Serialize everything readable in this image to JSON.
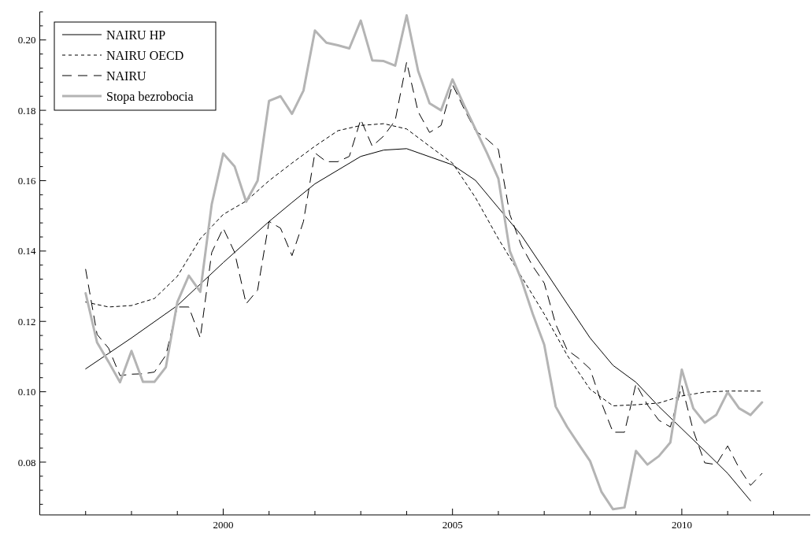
{
  "chart_data": {
    "type": "line",
    "xlim": [
      1996,
      2012.8
    ],
    "ylim": [
      0.065,
      0.208
    ],
    "xticks": [
      {
        "value": 1997,
        "label": null
      },
      {
        "value": 1998,
        "label": null
      },
      {
        "value": 1999,
        "label": null
      },
      2000,
      {
        "value": 2001,
        "label": null
      },
      {
        "value": 2002,
        "label": null
      },
      {
        "value": 2003,
        "label": null
      },
      {
        "value": 2004,
        "label": null
      },
      2005,
      {
        "value": 2006,
        "label": null
      },
      {
        "value": 2007,
        "label": null
      },
      {
        "value": 2008,
        "label": null
      },
      {
        "value": 2009,
        "label": null
      },
      2010,
      {
        "value": 2011,
        "label": null
      },
      {
        "value": 2012,
        "label": null
      }
    ],
    "yticks": [
      {
        "value": 0.068,
        "label": null
      },
      {
        "value": 0.072,
        "label": null
      },
      {
        "value": 0.076,
        "label": null
      },
      {
        "value": 0.08,
        "label": "0.08"
      },
      {
        "value": 0.084,
        "label": null
      },
      {
        "value": 0.088,
        "label": null
      },
      {
        "value": 0.092,
        "label": null
      },
      {
        "value": 0.096,
        "label": null
      },
      {
        "value": 0.1,
        "label": "0.10"
      },
      {
        "value": 0.104,
        "label": null
      },
      {
        "value": 0.108,
        "label": null
      },
      {
        "value": 0.112,
        "label": null
      },
      {
        "value": 0.116,
        "label": null
      },
      {
        "value": 0.12,
        "label": "0.12"
      },
      {
        "value": 0.124,
        "label": null
      },
      {
        "value": 0.128,
        "label": null
      },
      {
        "value": 0.132,
        "label": null
      },
      {
        "value": 0.136,
        "label": null
      },
      {
        "value": 0.14,
        "label": "0.14"
      },
      {
        "value": 0.144,
        "label": null
      },
      {
        "value": 0.148,
        "label": null
      },
      {
        "value": 0.152,
        "label": null
      },
      {
        "value": 0.156,
        "label": null
      },
      {
        "value": 0.16,
        "label": "0.16"
      },
      {
        "value": 0.164,
        "label": null
      },
      {
        "value": 0.168,
        "label": null
      },
      {
        "value": 0.172,
        "label": null
      },
      {
        "value": 0.176,
        "label": null
      },
      {
        "value": 0.18,
        "label": "0.18"
      },
      {
        "value": 0.184,
        "label": null
      },
      {
        "value": 0.188,
        "label": null
      },
      {
        "value": 0.192,
        "label": null
      },
      {
        "value": 0.196,
        "label": null
      },
      {
        "value": 0.2,
        "label": "0.20"
      },
      {
        "value": 0.204,
        "label": null
      },
      {
        "value": 0.208,
        "label": null
      }
    ],
    "grid": false,
    "legend": "top left",
    "series": [
      {
        "name": "NAIRU HP",
        "color": "#000000",
        "line_style": "solid",
        "x": [
          1997,
          1997.5,
          1998,
          1999,
          2000,
          2001,
          2001.5,
          2002,
          2003,
          2003.5,
          2004,
          2005,
          2005.5,
          2006,
          2006.5,
          2007,
          2007.5,
          2008,
          2008.5,
          2009,
          2009.5,
          2010,
          2010.5,
          2011,
          2011.5
        ],
        "values": [
          0.1065,
          0.1109,
          0.1153,
          0.1245,
          0.1367,
          0.1484,
          0.1538,
          0.1591,
          0.1669,
          0.1687,
          0.1691,
          0.1645,
          0.1601,
          0.1523,
          0.1445,
          0.1348,
          0.125,
          0.1153,
          0.1075,
          0.1027,
          0.0958,
          0.0895,
          0.0832,
          0.0768,
          0.069
        ]
      },
      {
        "name": "NAIRU OECD",
        "color": "#000000",
        "line_style": "dotted",
        "x": [
          1997,
          1997.5,
          1998,
          1998.5,
          1999,
          1999.5,
          2000,
          2000.5,
          2001,
          2001.5,
          2002,
          2002.5,
          2003,
          2003.5,
          2004,
          2004.5,
          2005,
          2005.5,
          2006,
          2006.5,
          2007,
          2007.5,
          2008,
          2008.5,
          2009,
          2009.5,
          2010,
          2010.5,
          2011,
          2011.75
        ],
        "values": [
          0.1255,
          0.1241,
          0.1245,
          0.1265,
          0.1328,
          0.1435,
          0.1504,
          0.1542,
          0.16,
          0.165,
          0.1698,
          0.1742,
          0.1757,
          0.1762,
          0.1747,
          0.1698,
          0.165,
          0.1552,
          0.1435,
          0.1328,
          0.1221,
          0.1104,
          0.1007,
          0.096,
          0.0963,
          0.0968,
          0.0988,
          0.0999,
          0.1002,
          0.1002
        ]
      },
      {
        "name": "NAIRU",
        "color": "#000000",
        "line_style": "dashed",
        "x": [
          1997,
          1997.25,
          1997.5,
          1997.75,
          1998,
          1998.25,
          1998.5,
          1998.75,
          1999,
          1999.25,
          1999.5,
          1999.75,
          2000,
          2000.25,
          2000.5,
          2000.75,
          2001,
          2001.25,
          2001.5,
          2001.75,
          2002,
          2002.25,
          2002.5,
          2002.75,
          2003,
          2003.25,
          2003.5,
          2003.75,
          2004,
          2004.25,
          2004.5,
          2004.75,
          2005,
          2005.25,
          2005.5,
          2005.75,
          2006,
          2006.25,
          2006.5,
          2006.75,
          2007,
          2007.25,
          2007.5,
          2007.75,
          2008,
          2008.25,
          2008.5,
          2008.75,
          2009,
          2009.25,
          2009.5,
          2009.75,
          2010,
          2010.25,
          2010.5,
          2010.75,
          2011,
          2011.25,
          2011.5,
          2011.75
        ],
        "values": [
          0.1348,
          0.1163,
          0.1124,
          0.1046,
          0.105,
          0.1051,
          0.1056,
          0.1104,
          0.1241,
          0.1241,
          0.1153,
          0.1396,
          0.1465,
          0.1396,
          0.125,
          0.1289,
          0.1484,
          0.1465,
          0.1387,
          0.1484,
          0.1679,
          0.1654,
          0.1654,
          0.1669,
          0.1774,
          0.1698,
          0.1727,
          0.1771,
          0.1937,
          0.1796,
          0.1737,
          0.1757,
          0.1873,
          0.1805,
          0.1742,
          0.1718,
          0.1689,
          0.1504,
          0.1416,
          0.1357,
          0.1309,
          0.1192,
          0.1119,
          0.1095,
          0.1065,
          0.0968,
          0.0885,
          0.0885,
          0.1022,
          0.0963,
          0.0919,
          0.09,
          0.1017,
          0.089,
          0.0798,
          0.0793,
          0.0846,
          0.0783,
          0.0734,
          0.0768
        ]
      },
      {
        "name": "Stopa bezrobocia",
        "color": "#b4b4b4",
        "line_style": "solid",
        "x": [
          1997,
          1997.25,
          1997.5,
          1997.75,
          1998,
          1998.25,
          1998.5,
          1998.75,
          1999,
          1999.25,
          1999.5,
          1999.75,
          2000,
          2000.25,
          2000.5,
          2000.75,
          2001,
          2001.25,
          2001.5,
          2001.75,
          2002,
          2002.25,
          2002.5,
          2002.75,
          2003,
          2003.25,
          2003.5,
          2003.75,
          2004,
          2004.25,
          2004.5,
          2004.75,
          2005,
          2005.25,
          2005.5,
          2005.75,
          2006,
          2006.25,
          2006.5,
          2006.75,
          2007,
          2007.25,
          2007.5,
          2007.75,
          2008,
          2008.25,
          2008.5,
          2008.75,
          2009,
          2009.25,
          2009.5,
          2009.75,
          2010,
          2010.25,
          2010.5,
          2010.75,
          2011,
          2011.25,
          2011.5,
          2011.75
        ],
        "values": [
          0.128,
          0.114,
          0.1085,
          0.1027,
          0.1116,
          0.1028,
          0.1028,
          0.107,
          0.1255,
          0.133,
          0.1284,
          0.1533,
          0.1677,
          0.164,
          0.154,
          0.16,
          0.1827,
          0.184,
          0.179,
          0.1856,
          0.2027,
          0.1992,
          0.1985,
          0.1976,
          0.2055,
          0.1942,
          0.194,
          0.1927,
          0.207,
          0.1912,
          0.182,
          0.18,
          0.1888,
          0.1815,
          0.1747,
          0.1679,
          0.1606,
          0.14,
          0.1319,
          0.1221,
          0.1134,
          0.0958,
          0.09,
          0.0851,
          0.0803,
          0.0715,
          0.0666,
          0.0671,
          0.0832,
          0.0793,
          0.0817,
          0.0856,
          0.1063,
          0.0953,
          0.0912,
          0.0934,
          0.0999,
          0.0953,
          0.0934,
          0.097
        ]
      }
    ]
  }
}
